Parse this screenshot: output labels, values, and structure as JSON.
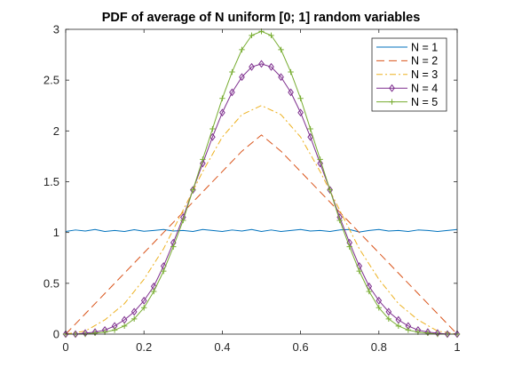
{
  "chart_data": {
    "type": "line",
    "title": "PDF of average of N uniform [0; 1] random variables",
    "xlabel": "",
    "ylabel": "",
    "xlim": [
      0,
      1
    ],
    "ylim": [
      0,
      3
    ],
    "xticks": [
      0,
      0.2,
      0.4,
      0.6,
      0.8,
      1
    ],
    "xtick_labels": [
      "0",
      "0.2",
      "0.4",
      "0.6",
      "0.8",
      "1"
    ],
    "yticks": [
      0,
      0.5,
      1,
      1.5,
      2,
      2.5,
      3
    ],
    "ytick_labels": [
      "0",
      "0.5",
      "1",
      "1.5",
      "2",
      "2.5",
      "3"
    ],
    "grid": false,
    "legend_position": "top-right",
    "series": [
      {
        "name": "N = 1",
        "color": "#0072bd",
        "style": "solid",
        "marker": "none",
        "x": [
          0,
          0.025,
          0.05,
          0.075,
          0.1,
          0.125,
          0.15,
          0.175,
          0.2,
          0.225,
          0.25,
          0.275,
          0.3,
          0.325,
          0.35,
          0.375,
          0.4,
          0.425,
          0.45,
          0.475,
          0.5,
          0.525,
          0.55,
          0.575,
          0.6,
          0.625,
          0.65,
          0.675,
          0.7,
          0.725,
          0.75,
          0.775,
          0.8,
          0.825,
          0.85,
          0.875,
          0.9,
          0.925,
          0.95,
          0.975,
          1
        ],
        "y": [
          1.01,
          1.025,
          1.015,
          1.03,
          1.01,
          1.02,
          1.01,
          1.028,
          1.012,
          1.02,
          1.03,
          1.015,
          1.02,
          1.01,
          1.03,
          1.02,
          1.01,
          1.025,
          1.015,
          1.03,
          1.01,
          1.025,
          1.01,
          1.02,
          1.03,
          1.015,
          1.02,
          1.01,
          1.025,
          1.03,
          1.005,
          1.02,
          1.03,
          1.015,
          1.02,
          1.01,
          1.025,
          1.02,
          1.01,
          1.02,
          1.03
        ]
      },
      {
        "name": "N = 2",
        "color": "#d95319",
        "style": "dashed",
        "marker": "none",
        "x": [
          0,
          0.05,
          0.1,
          0.15,
          0.2,
          0.25,
          0.3,
          0.35,
          0.4,
          0.45,
          0.5,
          0.55,
          0.6,
          0.65,
          0.7,
          0.75,
          0.8,
          0.85,
          0.9,
          0.95,
          1
        ],
        "y": [
          0,
          0.2,
          0.4,
          0.6,
          0.8,
          1.0,
          1.2,
          1.4,
          1.6,
          1.8,
          1.96,
          1.8,
          1.6,
          1.4,
          1.2,
          1.0,
          0.8,
          0.6,
          0.4,
          0.2,
          0
        ]
      },
      {
        "name": "N = 3",
        "color": "#edb120",
        "style": "dashdot",
        "marker": "none",
        "x": [
          0,
          0.05,
          0.1,
          0.15,
          0.2,
          0.25,
          0.3,
          0.35,
          0.4,
          0.45,
          0.5,
          0.55,
          0.6,
          0.65,
          0.7,
          0.75,
          0.8,
          0.85,
          0.9,
          0.95,
          1
        ],
        "y": [
          0,
          0.03,
          0.14,
          0.3,
          0.54,
          0.84,
          1.22,
          1.6,
          1.94,
          2.16,
          2.25,
          2.16,
          1.94,
          1.6,
          1.22,
          0.84,
          0.54,
          0.3,
          0.14,
          0.03,
          0
        ]
      },
      {
        "name": "N = 4",
        "color": "#7e2f8e",
        "style": "solid",
        "marker": "diamond",
        "x": [
          0,
          0.025,
          0.05,
          0.075,
          0.1,
          0.125,
          0.15,
          0.175,
          0.2,
          0.225,
          0.25,
          0.275,
          0.3,
          0.325,
          0.35,
          0.375,
          0.4,
          0.425,
          0.45,
          0.475,
          0.5,
          0.525,
          0.55,
          0.575,
          0.6,
          0.625,
          0.65,
          0.675,
          0.7,
          0.725,
          0.75,
          0.775,
          0.8,
          0.825,
          0.85,
          0.875,
          0.9,
          0.925,
          0.95,
          0.975,
          1
        ],
        "y": [
          0,
          0.0,
          0.01,
          0.02,
          0.04,
          0.08,
          0.14,
          0.22,
          0.33,
          0.47,
          0.67,
          0.9,
          1.15,
          1.42,
          1.68,
          1.94,
          2.18,
          2.38,
          2.53,
          2.63,
          2.66,
          2.63,
          2.53,
          2.38,
          2.18,
          1.94,
          1.68,
          1.42,
          1.15,
          0.9,
          0.67,
          0.47,
          0.33,
          0.22,
          0.14,
          0.08,
          0.04,
          0.02,
          0.01,
          0.0,
          0
        ]
      },
      {
        "name": "N = 5",
        "color": "#77ac30",
        "style": "solid",
        "marker": "plus",
        "x": [
          0,
          0.025,
          0.05,
          0.075,
          0.1,
          0.125,
          0.15,
          0.175,
          0.2,
          0.225,
          0.25,
          0.275,
          0.3,
          0.325,
          0.35,
          0.375,
          0.4,
          0.425,
          0.45,
          0.475,
          0.5,
          0.525,
          0.55,
          0.575,
          0.6,
          0.625,
          0.65,
          0.675,
          0.7,
          0.725,
          0.75,
          0.775,
          0.8,
          0.825,
          0.85,
          0.875,
          0.9,
          0.925,
          0.95,
          0.975,
          1
        ],
        "y": [
          0,
          0.0,
          0.0,
          0.01,
          0.02,
          0.04,
          0.08,
          0.15,
          0.26,
          0.42,
          0.62,
          0.86,
          1.12,
          1.42,
          1.72,
          2.02,
          2.32,
          2.58,
          2.8,
          2.94,
          2.98,
          2.94,
          2.8,
          2.58,
          2.32,
          2.02,
          1.72,
          1.42,
          1.12,
          0.86,
          0.62,
          0.42,
          0.26,
          0.15,
          0.08,
          0.04,
          0.02,
          0.01,
          0.0,
          0.0,
          0
        ]
      }
    ]
  }
}
